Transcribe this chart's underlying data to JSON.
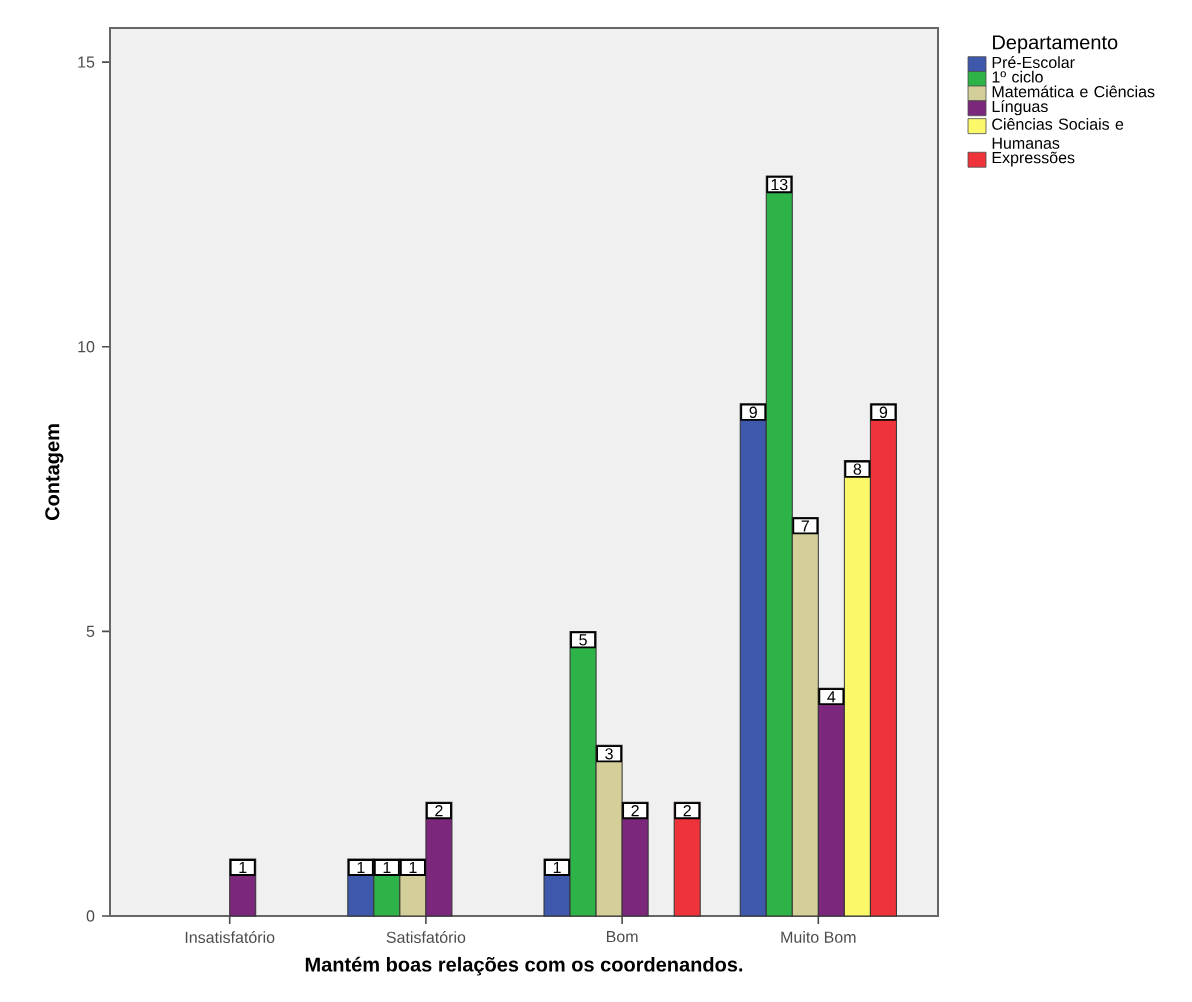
{
  "chart_data": {
    "type": "bar",
    "xlabel": "Mantém boas relações com os coordenandos.",
    "ylabel": "Contagem",
    "legend_title": "Departamento",
    "categories": [
      "Insatisfatório",
      "Satisfatório",
      "Bom",
      "Muito Bom"
    ],
    "series": [
      {
        "name": "Pré-Escolar",
        "color": "#3e58ac",
        "values": [
          null,
          1,
          1,
          9
        ]
      },
      {
        "name": "1º ciclo",
        "color": "#2eb348",
        "values": [
          null,
          1,
          5,
          13
        ]
      },
      {
        "name": "Matemática e Ciências",
        "color": "#d4cf98",
        "values": [
          null,
          1,
          3,
          7
        ]
      },
      {
        "name": "Línguas",
        "color": "#7b287c",
        "values": [
          1,
          2,
          2,
          4
        ]
      },
      {
        "name": "Ciências Sociais e Humanas",
        "color": "#fbf86a",
        "values": [
          null,
          null,
          null,
          8
        ]
      },
      {
        "name": "Expressões",
        "color": "#ee333b",
        "values": [
          null,
          null,
          2,
          9
        ]
      }
    ],
    "ylim": [
      0,
      15.6
    ],
    "yticks": [
      0,
      5,
      10,
      15
    ],
    "data_labels": true,
    "legend": "right",
    "grid": false
  }
}
